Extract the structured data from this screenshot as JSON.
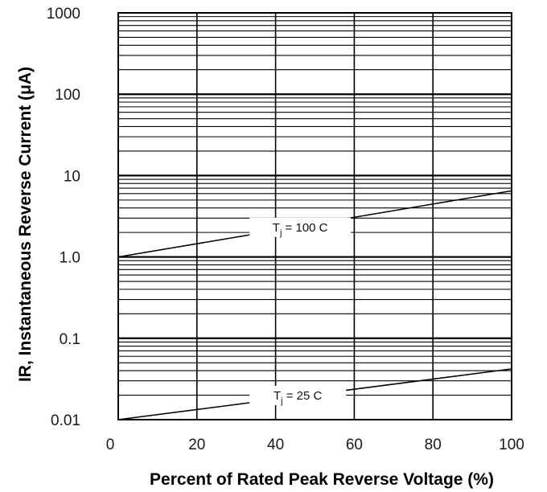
{
  "chart_data": {
    "type": "line",
    "xlabel": "Percent of Rated Peak Reverse Voltage (%)",
    "ylabel": "IR, Instantaneous Reverse Current (μA)",
    "x_ticks": [
      0,
      20,
      40,
      60,
      80,
      100
    ],
    "x_tick_labels": [
      "0",
      "20",
      "40",
      "60",
      "80",
      "100"
    ],
    "y_ticks": [
      0.01,
      0.1,
      1,
      10,
      100,
      1000
    ],
    "y_tick_labels": [
      "0.01",
      "0.1",
      "1.0",
      "10",
      "100",
      "1000"
    ],
    "xlim": [
      0,
      100
    ],
    "ylim": [
      0.01,
      1000
    ],
    "y_scale": "log",
    "grid": true,
    "series": [
      {
        "name": "Tj = 100 C",
        "label_main": "T",
        "label_sub": "j",
        "label_rest": " = 100 C",
        "x": [
          0,
          100
        ],
        "y": [
          1.0,
          6.5
        ]
      },
      {
        "name": "Tj = 25 C",
        "label_main": "T",
        "label_sub": "j",
        "label_rest": " = 25 C",
        "x": [
          0,
          100
        ],
        "y": [
          0.01,
          0.042
        ]
      }
    ]
  }
}
